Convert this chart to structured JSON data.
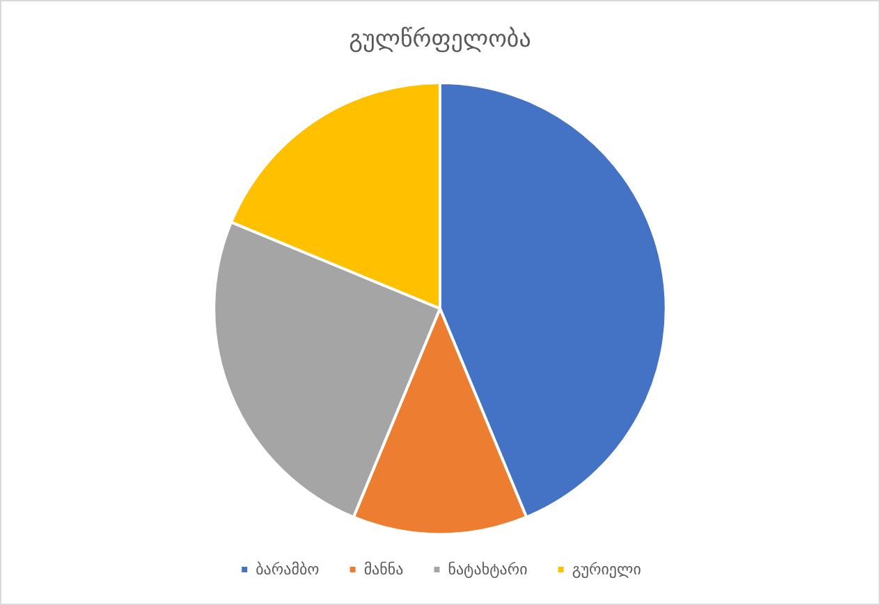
{
  "chart_data": {
    "type": "pie",
    "title": "გულწრფელობა",
    "categories": [
      "ბარამბო",
      "მანნა",
      "ნატახტარი",
      "გურიელი"
    ],
    "values": [
      43.75,
      12.5,
      25,
      18.75
    ],
    "colors": [
      "#4472c4",
      "#ed7d31",
      "#a5a5a5",
      "#ffc000"
    ],
    "legend": "bottom"
  }
}
